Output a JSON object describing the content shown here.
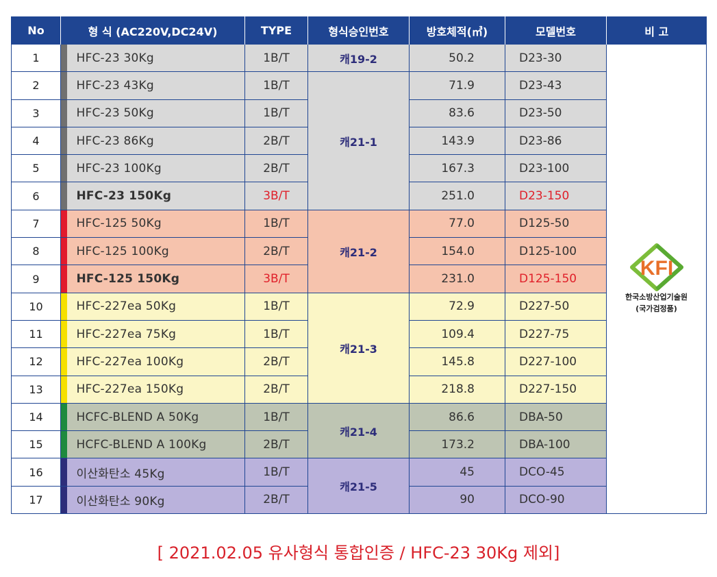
{
  "colors": {
    "header_bg": "#1f4592",
    "group_gray": "#d9d9d9",
    "group_red": "#f6c3ad",
    "group_yellow": "#fbf6c6",
    "group_green": "#bec5b3",
    "group_purple": "#bab2dc",
    "stripe_gray": "#707070",
    "stripe_red": "#e11b2d",
    "stripe_yellow": "#f6e000",
    "stripe_green": "#1e8a3e",
    "stripe_purple": "#2d2d7a",
    "highlight_red": "#e0202a"
  },
  "header": {
    "no": "No",
    "model": "형   식 (AC220V,DC24V)",
    "type": "TYPE",
    "approval": "형식승인번호",
    "volume": "방호체적(㎥)",
    "code": "모델번호",
    "remark": "비   고"
  },
  "groups": [
    {
      "approval": "캐19-2",
      "bg": "#d9d9d9",
      "stripe": "#707070",
      "rows": [
        {
          "no": "1",
          "model": "HFC-23 30Kg",
          "type": "1B/T",
          "volume": "50.2",
          "code": "D23-30",
          "bold": false
        }
      ]
    },
    {
      "approval": "캐21-1",
      "bg": "#d9d9d9",
      "stripe": "#707070",
      "rows": [
        {
          "no": "2",
          "model": "HFC-23 43Kg",
          "type": "1B/T",
          "volume": "71.9",
          "code": "D23-43",
          "bold": false
        },
        {
          "no": "3",
          "model": "HFC-23 50Kg",
          "type": "1B/T",
          "volume": "83.6",
          "code": "D23-50",
          "bold": false
        },
        {
          "no": "4",
          "model": "HFC-23 86Kg",
          "type": "2B/T",
          "volume": "143.9",
          "code": "D23-86",
          "bold": false
        },
        {
          "no": "5",
          "model": "HFC-23 100Kg",
          "type": "2B/T",
          "volume": "167.3",
          "code": "D23-100",
          "bold": false
        },
        {
          "no": "6",
          "model": "HFC-23 150Kg",
          "type": "3B/T",
          "volume": "251.0",
          "code": "D23-150",
          "bold": true
        }
      ]
    },
    {
      "approval": "캐21-2",
      "bg": "#f6c3ad",
      "stripe": "#e11b2d",
      "rows": [
        {
          "no": "7",
          "model": "HFC-125  50Kg",
          "type": "1B/T",
          "volume": "77.0",
          "code": "D125-50",
          "bold": false
        },
        {
          "no": "8",
          "model": "HFC-125  100Kg",
          "type": "2B/T",
          "volume": "154.0",
          "code": "D125-100",
          "bold": false
        },
        {
          "no": "9",
          "model": "HFC-125  150Kg",
          "type": "3B/T",
          "volume": "231.0",
          "code": "D125-150",
          "bold": true
        }
      ]
    },
    {
      "approval": "캐21-3",
      "bg": "#fbf6c6",
      "stripe": "#f6e000",
      "rows": [
        {
          "no": "10",
          "model": "HFC-227ea  50Kg",
          "type": "1B/T",
          "volume": "72.9",
          "code": "D227-50",
          "bold": false
        },
        {
          "no": "11",
          "model": "HFC-227ea  75Kg",
          "type": "1B/T",
          "volume": "109.4",
          "code": "D227-75",
          "bold": false
        },
        {
          "no": "12",
          "model": "HFC-227ea  100Kg",
          "type": "2B/T",
          "volume": "145.8",
          "code": "D227-100",
          "bold": false
        },
        {
          "no": "13",
          "model": "HFC-227ea  150Kg",
          "type": "2B/T",
          "volume": "218.8",
          "code": "D227-150",
          "bold": false
        }
      ]
    },
    {
      "approval": "캐21-4",
      "bg": "#bec5b3",
      "stripe": "#1e8a3e",
      "rows": [
        {
          "no": "14",
          "model": "HCFC-BLEND A 50Kg",
          "type": "1B/T",
          "volume": "86.6",
          "code": "DBA-50",
          "bold": false
        },
        {
          "no": "15",
          "model": "HCFC-BLEND A 100Kg",
          "type": "2B/T",
          "volume": "173.2",
          "code": "DBA-100",
          "bold": false
        }
      ]
    },
    {
      "approval": "캐21-5",
      "bg": "#bab2dc",
      "stripe": "#2d2d7a",
      "rows": [
        {
          "no": "16",
          "model": "이산화탄소  45Kg",
          "type": "1B/T",
          "volume": "45",
          "code": "DCO-45",
          "bold": false
        },
        {
          "no": "17",
          "model": "이산화탄소  90Kg",
          "type": "2B/T",
          "volume": "90",
          "code": "DCO-90",
          "bold": false
        }
      ]
    }
  ],
  "remark": {
    "logo_icon": "kfi-logo",
    "logo_text": "KFI",
    "line1": "한국소방산업기술원",
    "line2": "(국가검정품)"
  },
  "footnote": "[ 2021.02.05 유사형식 통합인증 / HFC-23 30Kg 제외]"
}
